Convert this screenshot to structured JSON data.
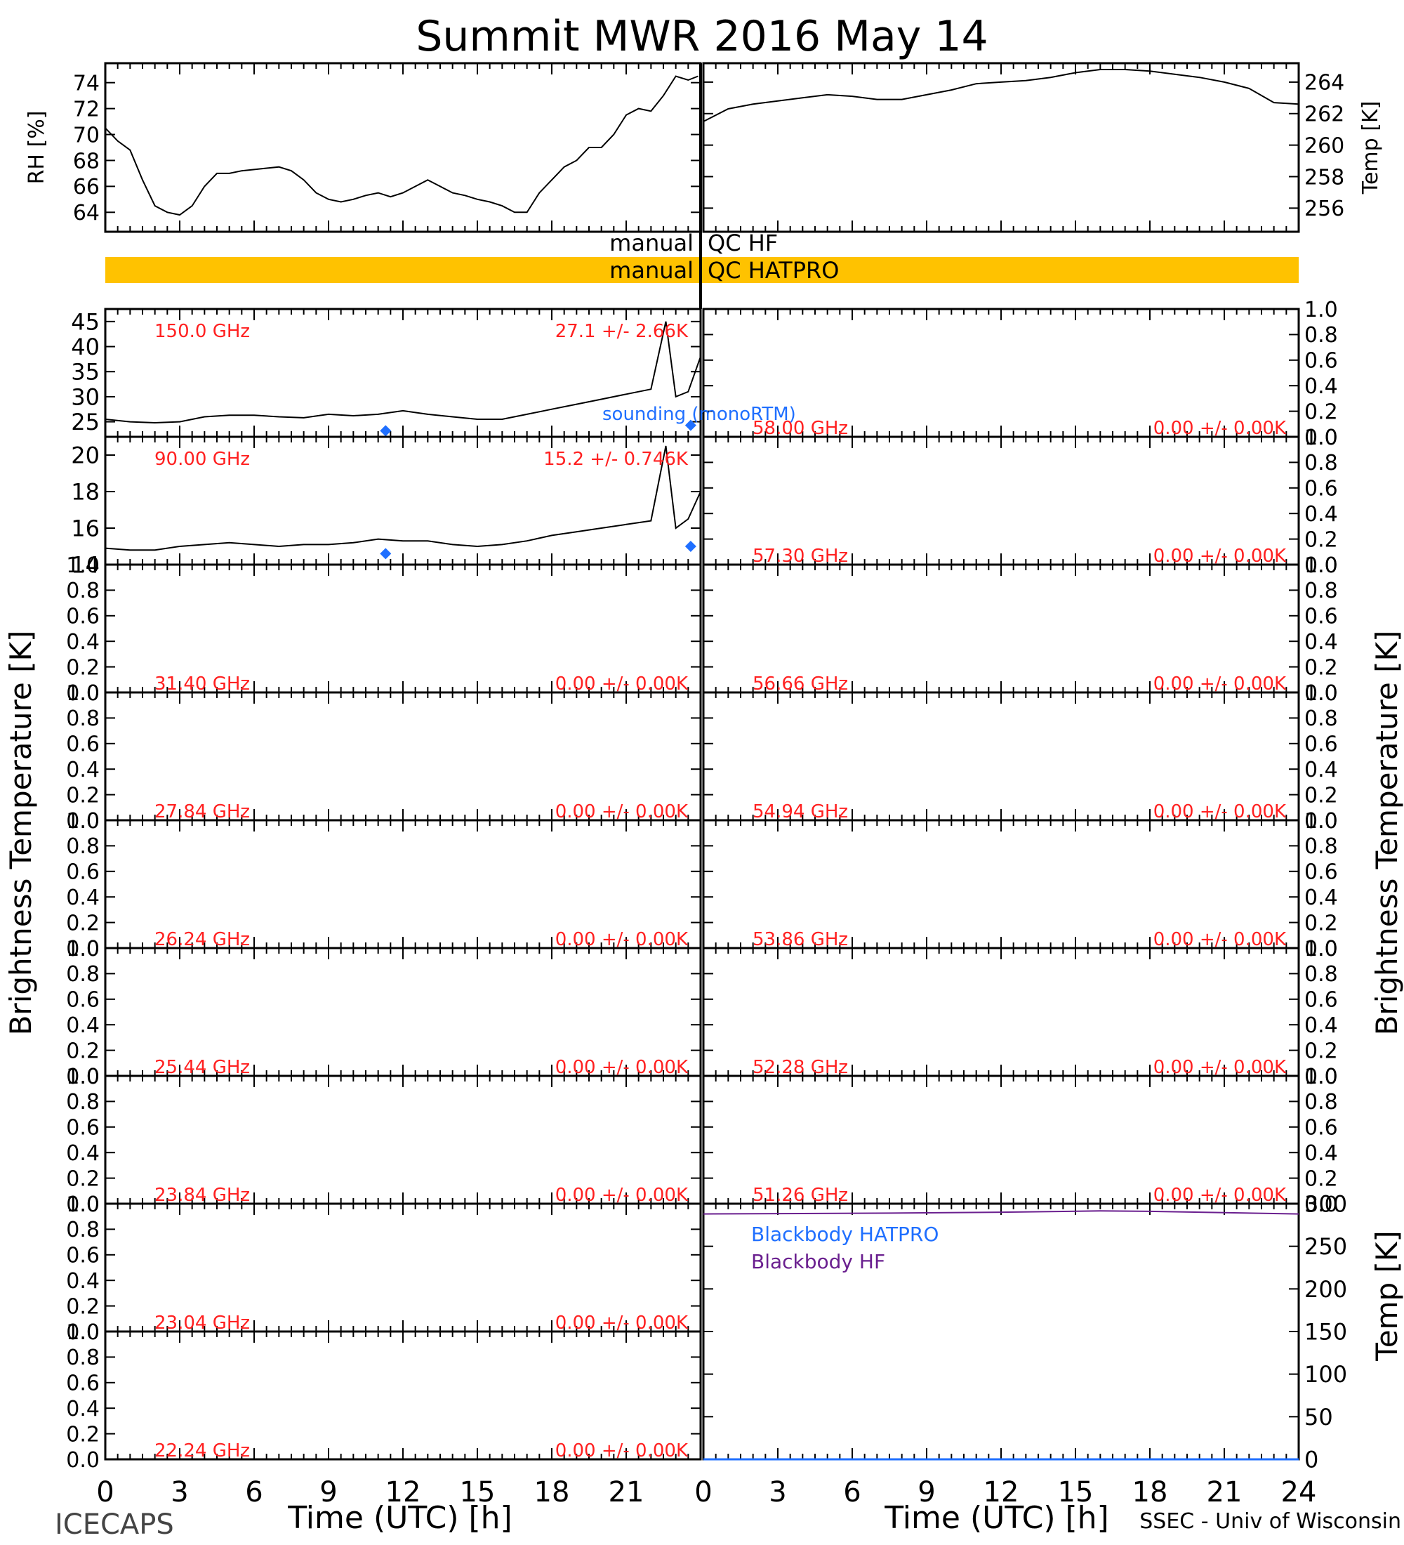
{
  "title": "Summit MWR 2016 May 14",
  "footer": {
    "left": "ICECAPS",
    "right": "SSEC - Univ of Wisconsin"
  },
  "colors": {
    "axis": "#000000",
    "label_red": "#ff2020",
    "sounding_blue": "#1f6fff",
    "qc_bar": "#ffc200",
    "blackbody_hf": "#6a1f8f"
  },
  "qc": {
    "hf_label_left": "manual",
    "hf_label_right": "QC HF",
    "hatpro_label_left": "manual",
    "hatpro_label_right": "QC HATPRO"
  },
  "axes_labels": {
    "rh": "RH [%]",
    "temp_top": "Temp [K]",
    "tb_left": "Brightness Temperature [K]",
    "tb_right": "Brightness Temperature [K]",
    "temp_bottom": "Temp [K]",
    "time_left": "Time (UTC) [h]",
    "time_right": "Time (UTC) [h]"
  },
  "sounding_label": "sounding (monoRTM)",
  "blackbody_labels": {
    "hatpro": "Blackbody HATPRO",
    "hf": "Blackbody HF"
  },
  "chart_data": [
    {
      "type": "line",
      "panel": "relative-humidity",
      "xlabel": "",
      "ylabel": "RH [%]",
      "xlim": [
        0,
        24
      ],
      "ylim": [
        62.5,
        75.5
      ],
      "yticks": [
        64,
        66,
        68,
        70,
        72,
        74
      ],
      "x": [
        0,
        0.5,
        1,
        1.5,
        2,
        2.5,
        3,
        3.5,
        4,
        4.5,
        5,
        5.5,
        6,
        6.5,
        7,
        7.5,
        8,
        8.5,
        9,
        9.5,
        10,
        10.5,
        11,
        11.5,
        12,
        12.5,
        13,
        13.5,
        14,
        14.5,
        15,
        15.5,
        16,
        16.5,
        17,
        17.5,
        18,
        18.5,
        19,
        19.5,
        20,
        20.5,
        21,
        21.5,
        22,
        22.5,
        23,
        23.5,
        23.9
      ],
      "y": [
        70.5,
        69.5,
        68.8,
        66.5,
        64.5,
        64,
        63.8,
        64.5,
        66,
        67,
        67,
        67.2,
        67.3,
        67.4,
        67.5,
        67.2,
        66.5,
        65.5,
        65,
        64.8,
        65,
        65.3,
        65.5,
        65.2,
        65.5,
        66,
        66.5,
        66,
        65.5,
        65.3,
        65,
        64.8,
        64.5,
        64,
        64,
        65.5,
        66.5,
        67.5,
        68,
        69,
        69,
        70,
        71.5,
        72,
        71.8,
        73,
        74.5,
        74.2,
        74.5
      ]
    },
    {
      "type": "line",
      "panel": "surface-temperature",
      "ylabel": "Temp [K]",
      "xlim": [
        0,
        24
      ],
      "ylim": [
        254.5,
        265.2
      ],
      "yticks": [
        256,
        258,
        260,
        262,
        264
      ],
      "x": [
        0,
        1,
        2,
        3,
        4,
        5,
        6,
        7,
        8,
        9,
        10,
        11,
        12,
        13,
        14,
        15,
        16,
        17,
        18,
        19,
        20,
        21,
        22,
        23,
        24
      ],
      "y": [
        261.5,
        262.3,
        262.6,
        262.8,
        263.0,
        263.2,
        263.1,
        262.9,
        262.9,
        263.2,
        263.5,
        263.9,
        264.0,
        264.1,
        264.3,
        264.6,
        264.8,
        264.8,
        264.7,
        264.5,
        264.3,
        264.0,
        263.6,
        262.7,
        262.6
      ]
    },
    {
      "type": "line",
      "panel": "tb-150.0",
      "channel": "150.0 GHz",
      "stat": "27.1 +/-  2.66K",
      "xlim": [
        0,
        24
      ],
      "ylim": [
        22,
        47.5
      ],
      "yticks": [
        25,
        30,
        35,
        40,
        45
      ],
      "x": [
        0,
        1,
        2,
        3,
        4,
        5,
        6,
        7,
        8,
        9,
        10,
        11,
        12,
        13,
        14,
        15,
        16,
        17,
        18,
        19,
        20,
        21,
        22,
        22.6,
        23,
        23.5,
        24
      ],
      "y": [
        25.5,
        25,
        24.8,
        25,
        26,
        26.3,
        26.3,
        26,
        25.8,
        26.5,
        26.2,
        26.5,
        27.2,
        26.5,
        26,
        25.5,
        25.5,
        26.5,
        27.5,
        28.5,
        29.5,
        30.5,
        31.5,
        45,
        30,
        31,
        38
      ],
      "sounding": {
        "x": [
          11.3,
          23.6
        ],
        "y": [
          23.2,
          24.3
        ]
      }
    },
    {
      "type": "line",
      "panel": "tb-90.00",
      "channel": "90.00 GHz",
      "stat": "15.2 +/- 0.746K",
      "xlim": [
        0,
        24
      ],
      "ylim": [
        14,
        21
      ],
      "yticks": [
        14,
        16,
        18,
        20
      ],
      "x": [
        0,
        1,
        2,
        3,
        4,
        5,
        6,
        7,
        8,
        9,
        10,
        11,
        12,
        13,
        14,
        15,
        16,
        17,
        18,
        19,
        20,
        21,
        22,
        22.6,
        23,
        23.5,
        24
      ],
      "y": [
        14.9,
        14.8,
        14.8,
        15,
        15.1,
        15.2,
        15.1,
        15,
        15.1,
        15.1,
        15.2,
        15.4,
        15.3,
        15.3,
        15.1,
        15,
        15.1,
        15.3,
        15.6,
        15.8,
        16,
        16.2,
        16.4,
        20.5,
        16,
        16.5,
        18
      ],
      "sounding": {
        "x": [
          11.3,
          23.6
        ],
        "y": [
          14.6,
          15.0
        ]
      }
    },
    {
      "type": "line",
      "panel": "tb-empty-channels",
      "ylim": [
        0,
        1
      ],
      "yticks": [
        0.0,
        0.2,
        0.4,
        0.6,
        0.8,
        1.0
      ],
      "channels": [
        {
          "side": "left",
          "label": "31.40 GHz",
          "stat": "0.00 +/-  0.00K"
        },
        {
          "side": "left",
          "label": "27.84 GHz",
          "stat": "0.00 +/-  0.00K"
        },
        {
          "side": "left",
          "label": "26.24 GHz",
          "stat": "0.00 +/-  0.00K"
        },
        {
          "side": "left",
          "label": "25.44 GHz",
          "stat": "0.00 +/-  0.00K"
        },
        {
          "side": "left",
          "label": "23.84 GHz",
          "stat": "0.00 +/-  0.00K"
        },
        {
          "side": "left",
          "label": "23.04 GHz",
          "stat": "0.00 +/-  0.00K"
        },
        {
          "side": "left",
          "label": "22.24 GHz",
          "stat": "0.00 +/-  0.00K"
        },
        {
          "side": "right",
          "label": "58.00 GHz",
          "stat": "0.00 +/-  0.00K"
        },
        {
          "side": "right",
          "label": "57.30 GHz",
          "stat": "0.00 +/-  0.00K"
        },
        {
          "side": "right",
          "label": "56.66 GHz",
          "stat": "0.00 +/-  0.00K"
        },
        {
          "side": "right",
          "label": "54.94 GHz",
          "stat": "0.00 +/-  0.00K"
        },
        {
          "side": "right",
          "label": "53.86 GHz",
          "stat": "0.00 +/-  0.00K"
        },
        {
          "side": "right",
          "label": "52.28 GHz",
          "stat": "0.00 +/-  0.00K"
        },
        {
          "side": "right",
          "label": "51.26 GHz",
          "stat": "0.00 +/-  0.00K"
        }
      ]
    },
    {
      "type": "line",
      "panel": "blackbody-temperature",
      "ylabel": "Temp [K]",
      "xlim": [
        0,
        24
      ],
      "ylim": [
        0,
        300
      ],
      "yticks": [
        0,
        50,
        100,
        150,
        200,
        250,
        300
      ],
      "series": [
        {
          "name": "Blackbody HF",
          "x": [
            0,
            4,
            8,
            12,
            16,
            18,
            20,
            24
          ],
          "y": [
            288,
            288.5,
            289,
            290,
            291.5,
            291,
            290,
            288
          ]
        },
        {
          "name": "Blackbody HATPRO",
          "x": [
            0,
            24
          ],
          "y": [
            0,
            0
          ]
        }
      ]
    }
  ],
  "xticks": [
    0,
    3,
    6,
    9,
    12,
    15,
    18,
    21,
    24
  ],
  "xtick_labels_left": [
    "0",
    "3",
    "6",
    "9",
    "12",
    "15",
    "18",
    "21"
  ],
  "xtick_labels_right": [
    "0",
    "3",
    "6",
    "9",
    "12",
    "15",
    "18",
    "21",
    "24"
  ]
}
